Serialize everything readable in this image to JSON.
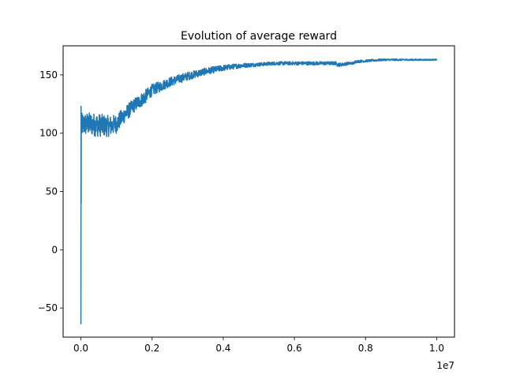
{
  "chart_data": {
    "type": "line",
    "title": "Evolution of average reward",
    "xlabel": "",
    "ylabel": "",
    "x_offset_label": "1e7",
    "xlim": [
      -0.05,
      1.05
    ],
    "ylim": [
      -75,
      175
    ],
    "x_ticks": [
      0.0,
      0.2,
      0.4,
      0.6,
      0.8,
      1.0
    ],
    "x_tick_labels": [
      "0.0",
      "0.2",
      "0.4",
      "0.6",
      "0.8",
      "1.0"
    ],
    "y_ticks": [
      -50,
      0,
      50,
      100,
      150
    ],
    "y_tick_labels": [
      "−50",
      "0",
      "50",
      "100",
      "150"
    ],
    "grid": false,
    "series": [
      {
        "name": "average reward",
        "color": "#1f77b4",
        "x": [
          0.0,
          0.02,
          0.05,
          0.08,
          0.1,
          0.12,
          0.15,
          0.18,
          0.2,
          0.25,
          0.3,
          0.35,
          0.4,
          0.45,
          0.5,
          0.55,
          0.6,
          0.65,
          0.7,
          0.73,
          0.75,
          0.8,
          0.85,
          0.9,
          0.95,
          1.0
        ],
        "mean": [
          107,
          108,
          107,
          106,
          108,
          115,
          124,
          131,
          137,
          144,
          149,
          153,
          156,
          158,
          159,
          160,
          160,
          160,
          160,
          160,
          161,
          162,
          163,
          163,
          163,
          163
        ],
        "noise": [
          10,
          10,
          10,
          9,
          8,
          7,
          6,
          6,
          5,
          4,
          3.5,
          3,
          2.5,
          2,
          1.5,
          1.5,
          1.5,
          1.5,
          1.5,
          1.5,
          1.2,
          1,
          0.8,
          0.7,
          0.6,
          0.5
        ],
        "initial_spike": [
          -64,
          123,
          40,
          115,
          100
        ]
      }
    ]
  }
}
